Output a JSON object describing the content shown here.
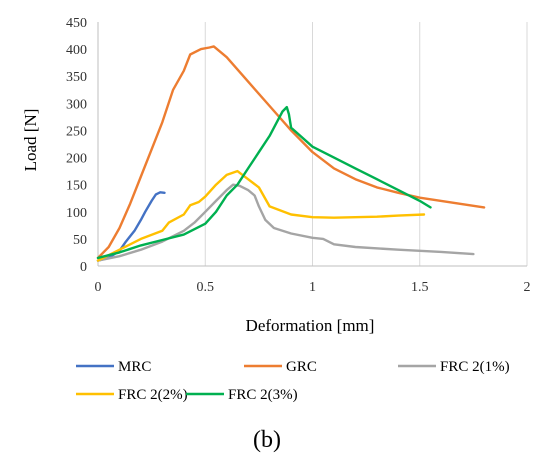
{
  "caption": "(b)",
  "chart_data": {
    "type": "line",
    "title": "",
    "xlabel": "Deformation [mm]",
    "ylabel": "Load [N]",
    "xlim": [
      0,
      2
    ],
    "ylim": [
      0,
      450
    ],
    "xticks": [
      0,
      0.5,
      1,
      1.5,
      2
    ],
    "xtick_labels": [
      "0",
      "0.5",
      "1",
      "1.5",
      "2"
    ],
    "yticks": [
      0,
      50,
      100,
      150,
      200,
      250,
      300,
      350,
      400,
      450
    ],
    "ytick_labels": [
      "0",
      "50",
      "100",
      "150",
      "200",
      "250",
      "300",
      "350",
      "400",
      "450"
    ],
    "grid": "vertical",
    "legend_position": "bottom",
    "series": [
      {
        "name": "MRC",
        "color": "#4472c4",
        "x": [
          0.0,
          0.05,
          0.1,
          0.13,
          0.17,
          0.2,
          0.22,
          0.25,
          0.27,
          0.29,
          0.31
        ],
        "y": [
          10,
          15,
          28,
          45,
          65,
          85,
          100,
          120,
          132,
          136,
          135
        ]
      },
      {
        "name": "GRC",
        "color": "#ed7d31",
        "x": [
          0.0,
          0.05,
          0.1,
          0.15,
          0.2,
          0.25,
          0.3,
          0.35,
          0.4,
          0.43,
          0.48,
          0.52,
          0.54,
          0.6,
          0.7,
          0.8,
          0.9,
          1.0,
          1.1,
          1.2,
          1.3,
          1.4,
          1.5,
          1.6,
          1.7,
          1.8
        ],
        "y": [
          15,
          35,
          70,
          115,
          165,
          215,
          265,
          325,
          360,
          390,
          400,
          403,
          405,
          385,
          340,
          295,
          250,
          210,
          180,
          160,
          145,
          135,
          126,
          120,
          114,
          108
        ]
      },
      {
        "name": "FRC 2(1%)",
        "color": "#a5a5a5",
        "x": [
          0.0,
          0.1,
          0.2,
          0.3,
          0.4,
          0.45,
          0.5,
          0.55,
          0.6,
          0.63,
          0.66,
          0.7,
          0.73,
          0.75,
          0.78,
          0.82,
          0.9,
          1.0,
          1.05,
          1.1,
          1.2,
          1.4,
          1.6,
          1.75
        ],
        "y": [
          10,
          18,
          30,
          45,
          65,
          80,
          100,
          120,
          140,
          150,
          148,
          140,
          130,
          110,
          85,
          70,
          60,
          52,
          50,
          40,
          35,
          30,
          26,
          22
        ]
      },
      {
        "name": "FRC 2(2%)",
        "color": "#ffc000",
        "x": [
          0.0,
          0.1,
          0.2,
          0.3,
          0.33,
          0.4,
          0.43,
          0.47,
          0.5,
          0.55,
          0.6,
          0.65,
          0.7,
          0.75,
          0.8,
          0.9,
          1.0,
          1.1,
          1.2,
          1.3,
          1.4,
          1.52
        ],
        "y": [
          10,
          30,
          50,
          65,
          80,
          95,
          112,
          118,
          128,
          150,
          168,
          175,
          160,
          145,
          110,
          95,
          90,
          89,
          90,
          91,
          93,
          95
        ]
      },
      {
        "name": "FRC 2(3%)",
        "color": "#00b050",
        "x": [
          0.0,
          0.1,
          0.2,
          0.3,
          0.4,
          0.5,
          0.55,
          0.6,
          0.65,
          0.7,
          0.75,
          0.8,
          0.84,
          0.86,
          0.88,
          0.89,
          0.9,
          1.0,
          1.1,
          1.2,
          1.3,
          1.4,
          1.5,
          1.55
        ],
        "y": [
          15,
          25,
          38,
          48,
          58,
          78,
          100,
          130,
          150,
          180,
          210,
          240,
          270,
          285,
          293,
          280,
          255,
          220,
          200,
          180,
          160,
          140,
          120,
          108
        ]
      }
    ]
  }
}
